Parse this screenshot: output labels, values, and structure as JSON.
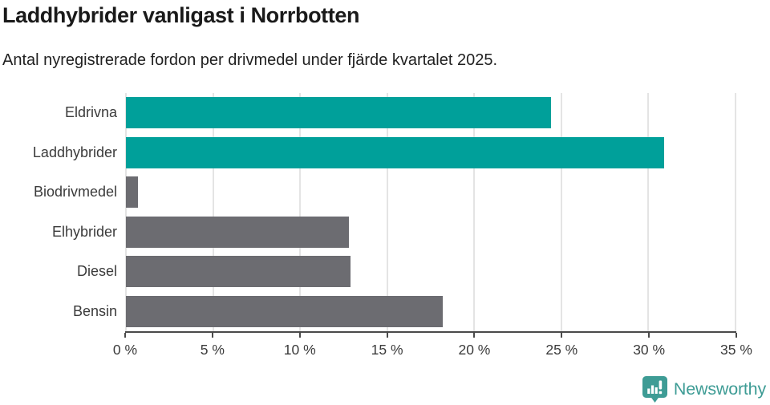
{
  "chart_data": {
    "type": "bar",
    "orientation": "horizontal",
    "title": "Laddhybrider vanligast i Norrbotten",
    "subtitle": "Antal nyregistrerade fordon per drivmedel under fjärde kvartalet 2025.",
    "categories": [
      "Eldrivna",
      "Laddhybrider",
      "Biodrivmedel",
      "Elhybrider",
      "Diesel",
      "Bensin"
    ],
    "values": [
      24.4,
      30.9,
      0.7,
      12.8,
      12.9,
      18.2
    ],
    "unit": "%",
    "bar_colors": [
      "#00a09a",
      "#00a09a",
      "#6c6c71",
      "#6c6c71",
      "#6c6c71",
      "#6c6c71"
    ],
    "xlim": [
      0,
      35
    ],
    "x_tick_values": [
      0,
      5,
      10,
      15,
      20,
      25,
      30,
      35
    ],
    "x_tick_labels": [
      "0 %",
      "5 %",
      "10 %",
      "15 %",
      "20 %",
      "25 %",
      "30 %",
      "35 %"
    ],
    "xlabel": "",
    "ylabel": "",
    "grid": true,
    "legend": false
  },
  "colors": {
    "accent_teal": "#00a09a",
    "bar_gray": "#6c6c71",
    "axis": "#4a4a4a",
    "gridline": "#e4e4e4",
    "tick_text": "#3b3b3b",
    "title_text": "#1a1a1a",
    "brand_teal": "#3e9c95"
  },
  "footer": {
    "brand": "Newsworthy",
    "logo_icon": "newsworthy-speech-bubble-bar-chart-icon"
  }
}
